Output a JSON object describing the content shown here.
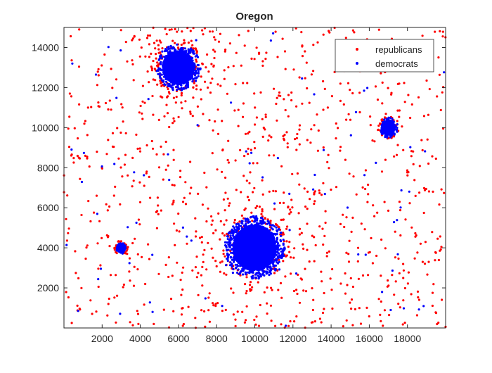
{
  "chart_data": {
    "type": "scatter",
    "title": "Oregon",
    "xlabel": "",
    "ylabel": "",
    "xlim": [
      0,
      20000
    ],
    "ylim": [
      0,
      15000
    ],
    "xticks": [
      2000,
      4000,
      6000,
      8000,
      10000,
      12000,
      14000,
      16000,
      18000
    ],
    "yticks": [
      2000,
      4000,
      6000,
      8000,
      10000,
      12000,
      14000
    ],
    "grid": false,
    "legend_position": "top-right",
    "series": [
      {
        "name": "republicans",
        "color": "#ff0000",
        "marker": "dot",
        "distribution": "uniform scatter over full plot area",
        "clusters": [
          {
            "center_x": 6000,
            "center_y": 13000,
            "spread": 900
          },
          {
            "center_x": 10000,
            "center_y": 4000,
            "spread": 1300
          }
        ]
      },
      {
        "name": "democrats",
        "color": "#0000ff",
        "marker": "dot",
        "clusters": [
          {
            "center_x": 10000,
            "center_y": 4000,
            "spread": 1500
          },
          {
            "center_x": 6000,
            "center_y": 13000,
            "spread": 1100
          },
          {
            "center_x": 17000,
            "center_y": 10000,
            "spread": 480
          },
          {
            "center_x": 3000,
            "center_y": 4000,
            "spread": 300
          }
        ],
        "distribution": "dense clusters plus sparse uniform scatter"
      }
    ]
  }
}
